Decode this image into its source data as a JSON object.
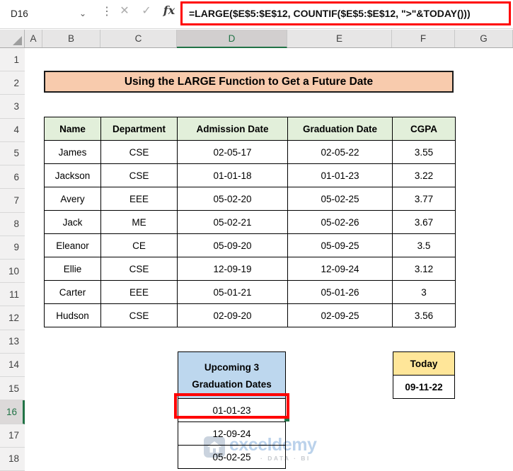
{
  "name_box": {
    "value": "D16"
  },
  "formula_bar": {
    "formula": "=LARGE($E$5:$E$12, COUNTIF($E$5:$E$12, \">\"&TODAY()))"
  },
  "icons": {
    "namebox_chevron": "⌄",
    "grip_dots": "⋮",
    "cancel": "✕",
    "enter": "✓",
    "fx": "fx"
  },
  "grid": {
    "columns": [
      "A",
      "B",
      "C",
      "D",
      "E",
      "F",
      "G"
    ],
    "selected_column": "D",
    "rows": [
      "1",
      "2",
      "3",
      "4",
      "5",
      "6",
      "7",
      "8",
      "9",
      "10",
      "11",
      "12",
      "13",
      "14",
      "15",
      "16",
      "17",
      "18"
    ],
    "selected_row": "16"
  },
  "banner": {
    "title": "Using the LARGE Function to Get a Future Date"
  },
  "table": {
    "headers": [
      "Name",
      "Department",
      "Admission Date",
      "Graduation Date",
      "CGPA"
    ],
    "rows": [
      {
        "name": "James",
        "department": "CSE",
        "admission": "02-05-17",
        "graduation": "02-05-22",
        "cgpa": "3.55"
      },
      {
        "name": "Jackson",
        "department": "CSE",
        "admission": "01-01-18",
        "graduation": "01-01-23",
        "cgpa": "3.22"
      },
      {
        "name": "Avery",
        "department": "EEE",
        "admission": "05-02-20",
        "graduation": "05-02-25",
        "cgpa": "3.77"
      },
      {
        "name": "Jack",
        "department": "ME",
        "admission": "05-02-21",
        "graduation": "05-02-26",
        "cgpa": "3.67"
      },
      {
        "name": "Eleanor",
        "department": "CE",
        "admission": "05-09-20",
        "graduation": "05-09-25",
        "cgpa": "3.5"
      },
      {
        "name": "Ellie",
        "department": "CSE",
        "admission": "12-09-19",
        "graduation": "12-09-24",
        "cgpa": "3.12"
      },
      {
        "name": "Carter",
        "department": "EEE",
        "admission": "05-01-21",
        "graduation": "05-01-26",
        "cgpa": "3"
      },
      {
        "name": "Hudson",
        "department": "CSE",
        "admission": "02-09-20",
        "graduation": "02-09-25",
        "cgpa": "3.56"
      }
    ]
  },
  "upcoming": {
    "title_line1": "Upcoming 3",
    "title_line2": "Graduation Dates",
    "values": [
      "01-01-23",
      "12-09-24",
      "05-02-25"
    ],
    "selected_value": "01-01-23"
  },
  "today": {
    "label": "Today",
    "value": "09-11-22"
  },
  "watermark": {
    "brand": "exceldemy",
    "tagline": "· DATA · BI"
  },
  "colors": {
    "accent_green": "#217346",
    "banner_bg": "#F8CBAD",
    "table_header_bg": "#E2EFDA",
    "upcoming_bg": "#BDD7EE",
    "today_bg": "#FFE699",
    "annotation_red": "#FF0000"
  }
}
